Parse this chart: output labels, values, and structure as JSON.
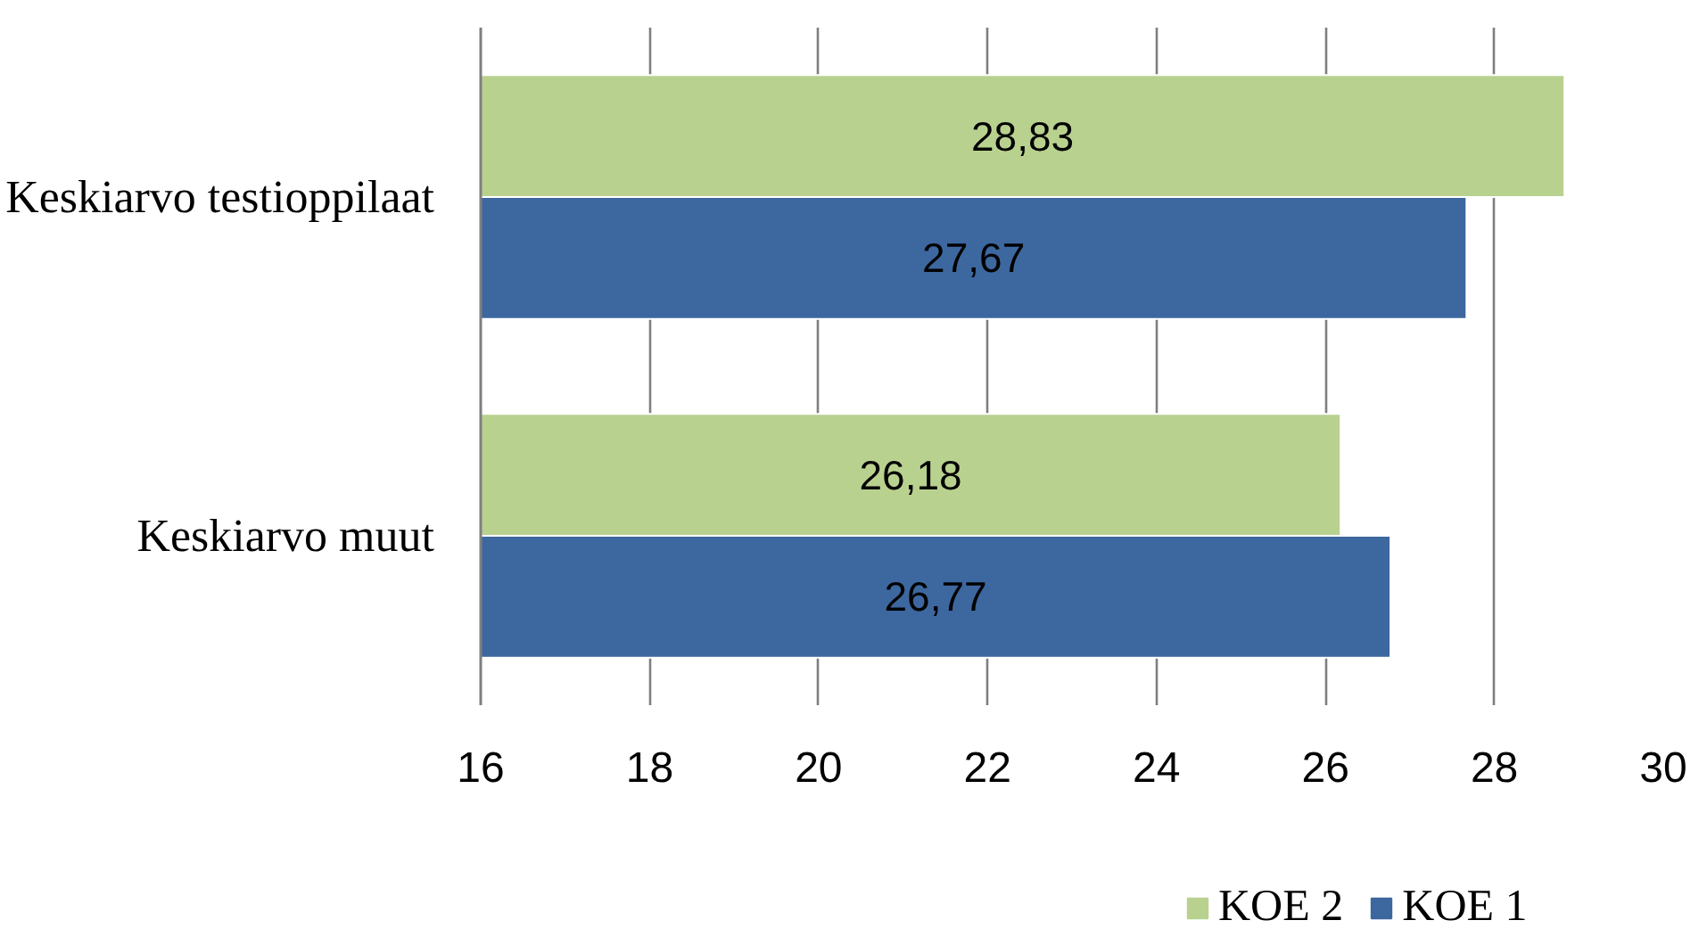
{
  "chart_data": {
    "type": "bar",
    "orientation": "horizontal",
    "categories": [
      "Keskiarvo testioppilaat",
      "Keskiarvo muut"
    ],
    "series": [
      {
        "name": "KOE 2",
        "color": "#b9d18f",
        "values": [
          28.83,
          26.18
        ],
        "value_labels": [
          "28,83",
          "26,18"
        ]
      },
      {
        "name": "KOE 1",
        "color": "#3d679f",
        "values": [
          27.67,
          26.77
        ],
        "value_labels": [
          "27,67",
          "26,77"
        ]
      }
    ],
    "xlim": [
      16,
      30
    ],
    "xticks": [
      16,
      18,
      20,
      22,
      24,
      26,
      28,
      30
    ],
    "grid": "x",
    "legend": "bottom"
  }
}
